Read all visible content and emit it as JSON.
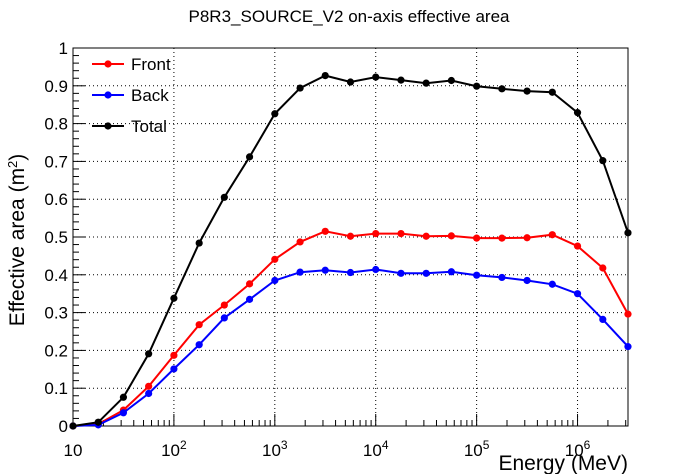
{
  "chart_data": {
    "type": "line",
    "title": "P8R3_SOURCE_V2 on-axis effective area",
    "xlabel": "Energy (MeV)",
    "ylabel_prefix": "Effective area (m",
    "ylabel_sup": "2",
    "ylabel_suffix": ")",
    "x_scale": "log",
    "xlim": [
      10,
      3162278
    ],
    "ylim": [
      0,
      1
    ],
    "grid": true,
    "grid_style": "dotted",
    "legend_position": "top-left",
    "x_ticks": [
      {
        "value": 10,
        "base": "10",
        "exp": ""
      },
      {
        "value": 100,
        "base": "10",
        "exp": "2"
      },
      {
        "value": 1000,
        "base": "10",
        "exp": "3"
      },
      {
        "value": 10000,
        "base": "10",
        "exp": "4"
      },
      {
        "value": 100000,
        "base": "10",
        "exp": "5"
      },
      {
        "value": 1000000,
        "base": "10",
        "exp": "6"
      }
    ],
    "y_ticks": [
      {
        "value": 0,
        "label": "0"
      },
      {
        "value": 0.1,
        "label": "0.1"
      },
      {
        "value": 0.2,
        "label": "0.2"
      },
      {
        "value": 0.3,
        "label": "0.3"
      },
      {
        "value": 0.4,
        "label": "0.4"
      },
      {
        "value": 0.5,
        "label": "0.5"
      },
      {
        "value": 0.6,
        "label": "0.6"
      },
      {
        "value": 0.7,
        "label": "0.7"
      },
      {
        "value": 0.8,
        "label": "0.8"
      },
      {
        "value": 0.9,
        "label": "0.9"
      },
      {
        "value": 1,
        "label": "1"
      }
    ],
    "x": [
      10,
      17.8,
      31.6,
      56.2,
      100,
      178,
      316,
      562,
      1000,
      1780,
      3160,
      5620,
      10000,
      17800,
      31600,
      56200,
      100000,
      178000,
      316000,
      562000,
      1000000,
      1780000,
      3160000
    ],
    "series": [
      {
        "name": "Front",
        "color": "#ff0000",
        "values": [
          0.0,
          0.005,
          0.042,
          0.105,
          0.187,
          0.268,
          0.32,
          0.376,
          0.441,
          0.487,
          0.515,
          0.502,
          0.509,
          0.509,
          0.502,
          0.503,
          0.497,
          0.497,
          0.498,
          0.506,
          0.476,
          0.418,
          0.296
        ]
      },
      {
        "name": "Back",
        "color": "#0000ff",
        "values": [
          0.0,
          0.003,
          0.035,
          0.086,
          0.151,
          0.215,
          0.286,
          0.335,
          0.385,
          0.407,
          0.412,
          0.406,
          0.414,
          0.404,
          0.404,
          0.408,
          0.399,
          0.393,
          0.385,
          0.375,
          0.35,
          0.282,
          0.21
        ]
      },
      {
        "name": "Total",
        "color": "#000000",
        "values": [
          0.0,
          0.01,
          0.076,
          0.191,
          0.338,
          0.484,
          0.605,
          0.712,
          0.826,
          0.894,
          0.927,
          0.91,
          0.923,
          0.915,
          0.907,
          0.914,
          0.899,
          0.892,
          0.886,
          0.883,
          0.829,
          0.702,
          0.511
        ]
      }
    ]
  }
}
